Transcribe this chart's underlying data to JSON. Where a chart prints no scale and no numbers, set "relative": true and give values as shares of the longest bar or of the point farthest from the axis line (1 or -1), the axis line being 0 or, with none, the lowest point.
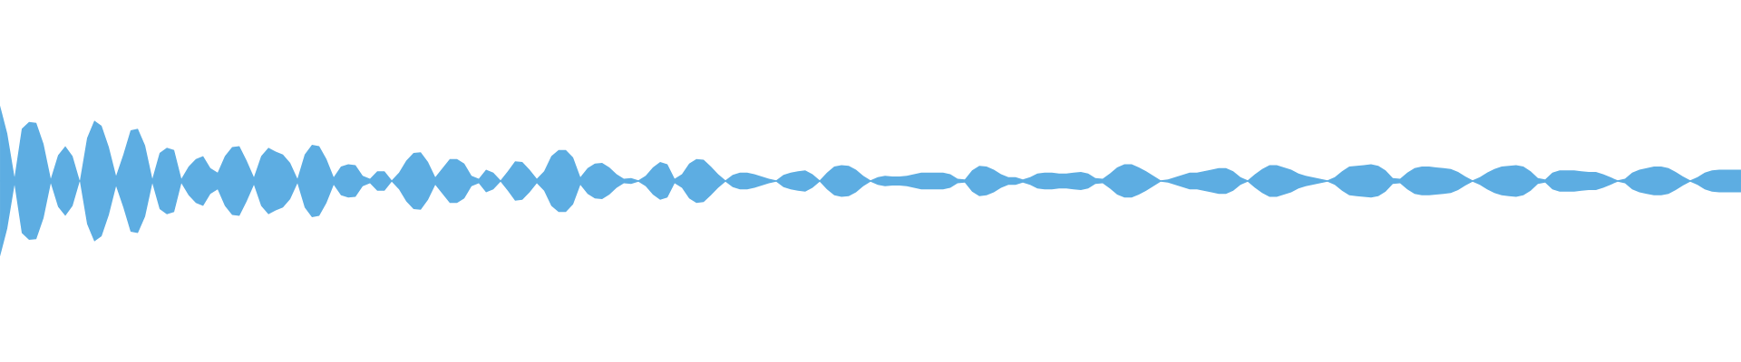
{
  "chart_data": {
    "type": "area",
    "relative": true,
    "categories": [
      null,
      null,
      null,
      null,
      null,
      null,
      null,
      null,
      null,
      null,
      null,
      null,
      null,
      null,
      null,
      null,
      null,
      null,
      null,
      null,
      null,
      null,
      null,
      null,
      null,
      null,
      null,
      null,
      null,
      null,
      null,
      null,
      null,
      null,
      null,
      null,
      null,
      null,
      null,
      null,
      null,
      null,
      null,
      null,
      null,
      null,
      null,
      null,
      null,
      null,
      null,
      null,
      null,
      null,
      null,
      null,
      null,
      null,
      null,
      null,
      null,
      null,
      null,
      null,
      null,
      null,
      null,
      null,
      null,
      null,
      null,
      null,
      null,
      null,
      null,
      null,
      null,
      null,
      null,
      null,
      null,
      null,
      null,
      null,
      null,
      null,
      null,
      null,
      null,
      null,
      null,
      null,
      null,
      null,
      null,
      null,
      null,
      null,
      null,
      null,
      null,
      null,
      null,
      null,
      null,
      null,
      null,
      null,
      null,
      null,
      null,
      null,
      null,
      null,
      null,
      null,
      null,
      null,
      null,
      null,
      null,
      null,
      null,
      null,
      null,
      null,
      null,
      null,
      null,
      null,
      null,
      null,
      null,
      null,
      null,
      null,
      null,
      null,
      null,
      null,
      null,
      null,
      null,
      null,
      null,
      null,
      null,
      null,
      null,
      null,
      null,
      null,
      null,
      null,
      null,
      null,
      null,
      null,
      null,
      null,
      null,
      null,
      null,
      null,
      null,
      null,
      null,
      null,
      null,
      null,
      null,
      null,
      null,
      null,
      null,
      null,
      null,
      null,
      null,
      null,
      null,
      null,
      null,
      null,
      null,
      null,
      null,
      null,
      null,
      null,
      null,
      null,
      null,
      null,
      null,
      null,
      null,
      null,
      null,
      null,
      null,
      null,
      null,
      null,
      null,
      null,
      null,
      null,
      null,
      null,
      null,
      null,
      null,
      null,
      null,
      null,
      null,
      null,
      null,
      null,
      null,
      null,
      null,
      null,
      null,
      null,
      null,
      null,
      null,
      null,
      null,
      null,
      null,
      null,
      null,
      null,
      null,
      null,
      null,
      null,
      null
    ],
    "series": [
      {
        "color": "#5dade2",
        "values": [
          1.0,
          0.63,
          0.05,
          0.69,
          0.78,
          0.77,
          0.49,
          0.03,
          0.34,
          0.46,
          0.33,
          0.0,
          0.57,
          0.8,
          0.73,
          0.45,
          0.07,
          0.35,
          0.67,
          0.69,
          0.47,
          0.03,
          0.37,
          0.44,
          0.41,
          0.03,
          0.19,
          0.29,
          0.33,
          0.17,
          0.11,
          0.33,
          0.45,
          0.46,
          0.27,
          0.05,
          0.33,
          0.44,
          0.39,
          0.35,
          0.24,
          0.03,
          0.35,
          0.48,
          0.46,
          0.29,
          0.05,
          0.19,
          0.22,
          0.21,
          0.07,
          0.03,
          0.13,
          0.13,
          0.01,
          0.11,
          0.27,
          0.37,
          0.38,
          0.25,
          0.05,
          0.17,
          0.29,
          0.29,
          0.23,
          0.07,
          0.03,
          0.15,
          0.11,
          0.01,
          0.13,
          0.26,
          0.25,
          0.15,
          0.03,
          0.13,
          0.33,
          0.41,
          0.41,
          0.31,
          0.05,
          0.17,
          0.23,
          0.24,
          0.18,
          0.09,
          0.03,
          0.04,
          0.01,
          0.07,
          0.18,
          0.25,
          0.22,
          0.03,
          0.09,
          0.23,
          0.29,
          0.28,
          0.19,
          0.09,
          0.01,
          0.08,
          0.11,
          0.11,
          0.09,
          0.06,
          0.03,
          0.01,
          0.08,
          0.11,
          0.13,
          0.14,
          0.09,
          0.01,
          0.11,
          0.19,
          0.21,
          0.2,
          0.15,
          0.07,
          0.01,
          0.05,
          0.07,
          0.06,
          0.06,
          0.07,
          0.09,
          0.11,
          0.11,
          0.11,
          0.11,
          0.09,
          0.03,
          0.02,
          0.14,
          0.2,
          0.19,
          0.15,
          0.09,
          0.05,
          0.05,
          0.02,
          0.05,
          0.1,
          0.11,
          0.11,
          0.1,
          0.1,
          0.11,
          0.12,
          0.1,
          0.04,
          0.03,
          0.1,
          0.18,
          0.22,
          0.22,
          0.18,
          0.13,
          0.07,
          0.01,
          0.02,
          0.05,
          0.08,
          0.11,
          0.11,
          0.13,
          0.15,
          0.17,
          0.17,
          0.13,
          0.05,
          0.01,
          0.09,
          0.16,
          0.21,
          0.21,
          0.18,
          0.15,
          0.1,
          0.07,
          0.05,
          0.03,
          0.01,
          0.05,
          0.13,
          0.19,
          0.2,
          0.21,
          0.22,
          0.2,
          0.14,
          0.04,
          0.03,
          0.11,
          0.17,
          0.19,
          0.19,
          0.18,
          0.17,
          0.16,
          0.12,
          0.06,
          0.01,
          0.05,
          0.11,
          0.16,
          0.19,
          0.2,
          0.21,
          0.19,
          0.13,
          0.04,
          0.02,
          0.11,
          0.14,
          0.14,
          0.14,
          0.13,
          0.12,
          0.12,
          0.09,
          0.05,
          0.01,
          0.03,
          0.11,
          0.15,
          0.17,
          0.19,
          0.19,
          0.17,
          0.12,
          0.06,
          0.01,
          0.05,
          0.11,
          0.14,
          0.15,
          0.15,
          0.15,
          0.15
        ]
      },
      {
        "color": "#5dade2",
        "values": [
          -1.0,
          -0.63,
          -0.05,
          -0.69,
          -0.78,
          -0.77,
          -0.49,
          -0.03,
          -0.34,
          -0.46,
          -0.33,
          0,
          -0.57,
          -0.8,
          -0.73,
          -0.45,
          -0.07,
          -0.35,
          -0.67,
          -0.69,
          -0.47,
          -0.03,
          -0.37,
          -0.44,
          -0.41,
          -0.03,
          -0.19,
          -0.29,
          -0.33,
          -0.17,
          -0.11,
          -0.33,
          -0.45,
          -0.46,
          -0.27,
          -0.05,
          -0.33,
          -0.44,
          -0.39,
          -0.35,
          -0.24,
          -0.03,
          -0.35,
          -0.48,
          -0.46,
          -0.29,
          -0.05,
          -0.19,
          -0.22,
          -0.21,
          -0.07,
          -0.03,
          -0.13,
          -0.13,
          -0.01,
          -0.11,
          -0.27,
          -0.37,
          -0.38,
          -0.25,
          -0.05,
          -0.17,
          -0.29,
          -0.29,
          -0.23,
          -0.07,
          -0.03,
          -0.15,
          -0.11,
          -0.01,
          -0.13,
          -0.26,
          -0.25,
          -0.15,
          -0.03,
          -0.13,
          -0.33,
          -0.41,
          -0.41,
          -0.31,
          -0.05,
          -0.17,
          -0.23,
          -0.24,
          -0.18,
          -0.09,
          -0.03,
          -0.04,
          -0.01,
          -0.07,
          -0.18,
          -0.25,
          -0.22,
          -0.03,
          -0.09,
          -0.23,
          -0.29,
          -0.28,
          -0.19,
          -0.09,
          -0.01,
          -0.08,
          -0.11,
          -0.11,
          -0.09,
          -0.06,
          -0.03,
          -0.01,
          -0.08,
          -0.11,
          -0.13,
          -0.14,
          -0.09,
          -0.01,
          -0.11,
          -0.19,
          -0.21,
          -0.2,
          -0.15,
          -0.07,
          -0.01,
          -0.05,
          -0.07,
          -0.06,
          -0.06,
          -0.07,
          -0.09,
          -0.11,
          -0.11,
          -0.11,
          -0.11,
          -0.09,
          -0.03,
          -0.02,
          -0.14,
          -0.2,
          -0.19,
          -0.15,
          -0.09,
          -0.05,
          -0.05,
          -0.02,
          -0.05,
          -0.1,
          -0.11,
          -0.11,
          -0.1,
          -0.1,
          -0.11,
          -0.12,
          -0.1,
          -0.04,
          -0.03,
          -0.1,
          -0.18,
          -0.22,
          -0.22,
          -0.18,
          -0.13,
          -0.07,
          -0.01,
          -0.02,
          -0.05,
          -0.08,
          -0.11,
          -0.11,
          -0.13,
          -0.15,
          -0.17,
          -0.17,
          -0.13,
          -0.05,
          -0.01,
          -0.09,
          -0.16,
          -0.21,
          -0.21,
          -0.18,
          -0.15,
          -0.1,
          -0.07,
          -0.05,
          -0.03,
          -0.01,
          -0.05,
          -0.13,
          -0.19,
          -0.2,
          -0.21,
          -0.22,
          -0.2,
          -0.14,
          -0.04,
          -0.03,
          -0.11,
          -0.17,
          -0.19,
          -0.19,
          -0.18,
          -0.17,
          -0.16,
          -0.12,
          -0.06,
          -0.01,
          -0.05,
          -0.11,
          -0.16,
          -0.19,
          -0.2,
          -0.21,
          -0.19,
          -0.13,
          -0.04,
          -0.02,
          -0.11,
          -0.14,
          -0.14,
          -0.14,
          -0.13,
          -0.12,
          -0.12,
          -0.09,
          -0.05,
          -0.01,
          -0.03,
          -0.11,
          -0.15,
          -0.17,
          -0.19,
          -0.19,
          -0.17,
          -0.12,
          -0.06,
          -0.01,
          -0.05,
          -0.11,
          -0.14,
          -0.15,
          -0.15,
          -0.15,
          -0.15
        ]
      }
    ],
    "ref_lines": [
      {
        "axis": "y",
        "value": 0,
        "color": "#5dade2"
      }
    ]
  }
}
